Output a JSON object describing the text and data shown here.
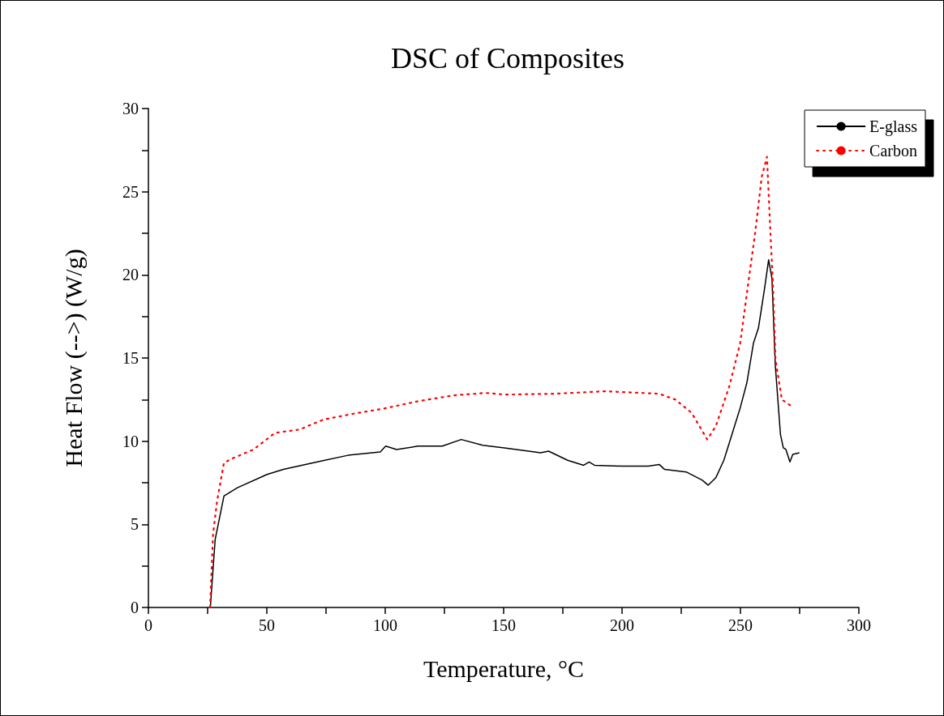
{
  "chart_data": {
    "type": "line",
    "title": "DSC of Composites",
    "xlabel": "Temperature, °C",
    "ylabel": "Heat Flow (-->) (W/g)",
    "xlim": [
      0,
      300
    ],
    "ylim": [
      0,
      30
    ],
    "xticks": [
      0,
      {
        "value": 25,
        "label": null
      },
      50,
      {
        "value": 75,
        "label": null
      },
      100,
      {
        "value": 125,
        "label": null
      },
      150,
      {
        "value": 175,
        "label": null
      },
      200,
      {
        "value": 225,
        "label": null
      },
      250,
      {
        "value": 275,
        "label": null
      },
      300
    ],
    "yticks": [
      0,
      {
        "value": 2.5,
        "label": null
      },
      5,
      {
        "value": 7.5,
        "label": null
      },
      10,
      {
        "value": 12.5,
        "label": null
      },
      15,
      {
        "value": 17.5,
        "label": null
      },
      20,
      {
        "value": 22.5,
        "label": null
      },
      25,
      {
        "value": 27.5,
        "label": null
      },
      30
    ],
    "grid": false,
    "legend": "top right",
    "marker": "none",
    "series": [
      {
        "name": "E-glass",
        "color": "#000000",
        "line_style": "solid",
        "x": [
          26,
          26.2,
          28.2,
          31.9,
          37.6,
          50.1,
          57,
          72.9,
          84.3,
          97.9,
          100.2,
          104.8,
          113.9,
          124.1,
          132.1,
          141.2,
          150.3,
          165.6,
          169,
          177,
          183.8,
          186.1,
          188.4,
          199.8,
          211.1,
          215.7,
          218,
          227.1,
          233.9,
          236.4,
          239.6,
          243,
          246.4,
          249.9,
          252.7,
          255.5,
          257.6,
          260.1,
          261.9,
          263.3,
          264.7,
          266.9,
          268.1,
          269.2,
          270.9,
          272.1,
          274.9
        ],
        "values": [
          0,
          0.1,
          4.1,
          6.7,
          7.2,
          8.0,
          8.3,
          8.8,
          9.15,
          9.35,
          9.7,
          9.5,
          9.7,
          9.7,
          10.1,
          9.75,
          9.6,
          9.3,
          9.4,
          8.85,
          8.55,
          8.75,
          8.55,
          8.5,
          8.5,
          8.6,
          8.3,
          8.15,
          7.65,
          7.35,
          7.8,
          8.85,
          10.4,
          12.0,
          13.5,
          15.9,
          16.8,
          19.1,
          20.9,
          19.8,
          14.6,
          10.4,
          9.6,
          9.5,
          8.75,
          9.2,
          9.3
        ]
      },
      {
        "name": "Carbon",
        "color": "#ff0000",
        "line_style": "dotted",
        "x": [
          26,
          26.2,
          27.3,
          29,
          31.9,
          35.3,
          44.4,
          53.5,
          63.8,
          74,
          86.6,
          99.1,
          113.9,
          128.7,
          142.3,
          150.8,
          171.3,
          192.9,
          215.7,
          222.5,
          229.4,
          236,
          239.6,
          245.3,
          249.9,
          253.3,
          256.1,
          259,
          261.2,
          262.6,
          263.7,
          264.8,
          267.5,
          272.6
        ],
        "values": [
          0,
          0.6,
          4.4,
          6.4,
          8.7,
          8.95,
          9.5,
          10.5,
          10.7,
          11.3,
          11.65,
          11.95,
          12.4,
          12.75,
          12.9,
          12.8,
          12.85,
          13.0,
          12.85,
          12.5,
          11.7,
          10.1,
          10.9,
          13.3,
          15.9,
          19.5,
          22.4,
          25.9,
          27.1,
          22.7,
          19.5,
          14.9,
          12.5,
          12.0
        ]
      }
    ]
  }
}
